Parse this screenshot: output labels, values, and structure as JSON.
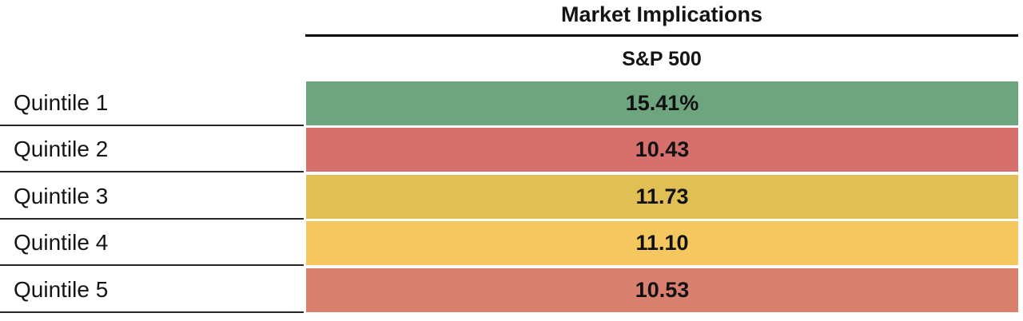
{
  "header": {
    "title": "Market Implications",
    "column_header": "S&P 500"
  },
  "table": {
    "rows": [
      {
        "label": "Quintile 1",
        "value": "15.41%",
        "color": "#6FA57E"
      },
      {
        "label": "Quintile 2",
        "value": "10.43",
        "color": "#D5706D"
      },
      {
        "label": "Quintile 3",
        "value": "11.73",
        "color": "#E0BF55"
      },
      {
        "label": "Quintile 4",
        "value": "11.10",
        "color": "#F5C75F"
      },
      {
        "label": "Quintile 5",
        "value": "10.53",
        "color": "#D9806F"
      }
    ]
  },
  "chart_data": {
    "type": "table",
    "title": "Market Implications",
    "column_header": "S&P 500",
    "categories": [
      "Quintile 1",
      "Quintile 2",
      "Quintile 3",
      "Quintile 4",
      "Quintile 5"
    ],
    "values": [
      15.41,
      10.43,
      11.73,
      11.1,
      10.53
    ],
    "value_labels": [
      "15.41%",
      "10.43",
      "11.73",
      "11.10",
      "10.53"
    ],
    "cell_colors": [
      "#6FA57E",
      "#D5706D",
      "#E0BF55",
      "#F5C75F",
      "#D9806F"
    ],
    "layout": {
      "legend": "none",
      "grid": "off",
      "value_alignment": "center",
      "label_alignment": "left",
      "coloring": "heatmap-by-row"
    }
  }
}
